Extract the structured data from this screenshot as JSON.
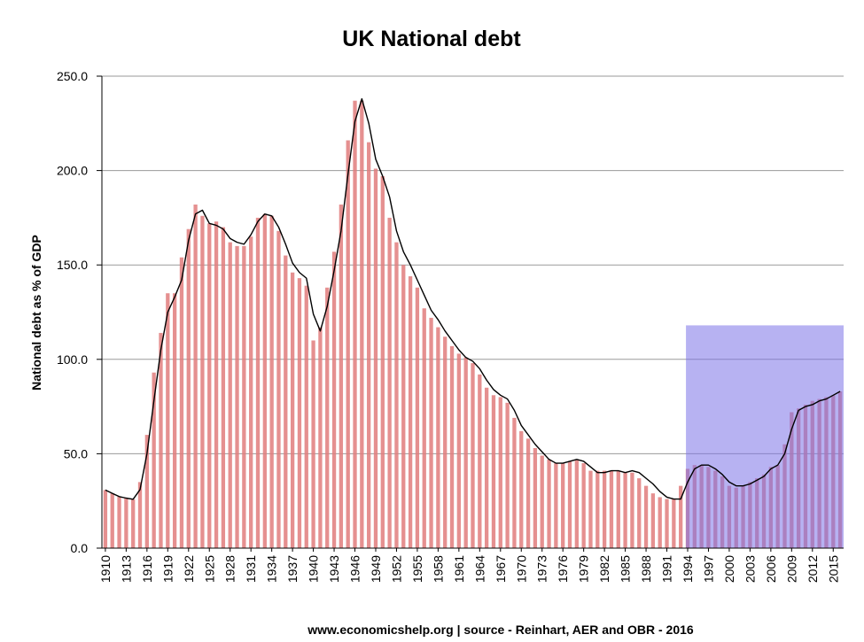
{
  "chart_data": {
    "type": "bar",
    "title": "UK National debt",
    "ylabel": "National debt as % of GDP",
    "xlabel": "",
    "source": "www.economicshelp.org | source - Reinhart, AER and OBR - 2016",
    "ylim": [
      0,
      250
    ],
    "yticks": [
      "0.0",
      "50.0",
      "100.0",
      "150.0",
      "200.0",
      "250.0"
    ],
    "grid": "horizontal",
    "year_start": 1910,
    "year_end": 2016,
    "xtick_labels": [
      "1910",
      "1913",
      "1916",
      "1919",
      "1922",
      "1925",
      "1928",
      "1931",
      "1934",
      "1937",
      "1940",
      "1943",
      "1946",
      "1949",
      "1952",
      "1955",
      "1958",
      "1961",
      "1964",
      "1967",
      "1970",
      "1973",
      "1976",
      "1979",
      "1982",
      "1985",
      "1988",
      "1991",
      "1994",
      "1997",
      "2000",
      "2003",
      "2006",
      "2009",
      "2012",
      "2015"
    ],
    "highlight": {
      "from": 1994,
      "to": 2016,
      "ymax": 118,
      "color": "#7b73e8"
    },
    "series": [
      {
        "type": "bar",
        "color": "#e07d7d",
        "values": [
          {
            "x": 1910,
            "y": 30.8
          },
          {
            "x": 1911,
            "y": 29.0
          },
          {
            "x": 1912,
            "y": 27.3
          },
          {
            "x": 1913,
            "y": 26.5
          },
          {
            "x": 1914,
            "y": 25.9
          },
          {
            "x": 1915,
            "y": 35.0
          },
          {
            "x": 1916,
            "y": 60.0
          },
          {
            "x": 1917,
            "y": 93.0
          },
          {
            "x": 1918,
            "y": 114.0
          },
          {
            "x": 1919,
            "y": 135.0
          },
          {
            "x": 1920,
            "y": 135.0
          },
          {
            "x": 1921,
            "y": 154.0
          },
          {
            "x": 1922,
            "y": 169.0
          },
          {
            "x": 1923,
            "y": 182.0
          },
          {
            "x": 1924,
            "y": 176.0
          },
          {
            "x": 1925,
            "y": 172.0
          },
          {
            "x": 1926,
            "y": 173.0
          },
          {
            "x": 1927,
            "y": 170.0
          },
          {
            "x": 1928,
            "y": 162.0
          },
          {
            "x": 1929,
            "y": 160.0
          },
          {
            "x": 1930,
            "y": 160.0
          },
          {
            "x": 1931,
            "y": 165.0
          },
          {
            "x": 1932,
            "y": 175.0
          },
          {
            "x": 1933,
            "y": 177.0
          },
          {
            "x": 1934,
            "y": 176.0
          },
          {
            "x": 1935,
            "y": 168.0
          },
          {
            "x": 1936,
            "y": 155.0
          },
          {
            "x": 1937,
            "y": 146.0
          },
          {
            "x": 1938,
            "y": 143.0
          },
          {
            "x": 1939,
            "y": 139.0
          },
          {
            "x": 1940,
            "y": 110.0
          },
          {
            "x": 1941,
            "y": 117.0
          },
          {
            "x": 1942,
            "y": 138.0
          },
          {
            "x": 1943,
            "y": 157.0
          },
          {
            "x": 1944,
            "y": 182.0
          },
          {
            "x": 1945,
            "y": 216.0
          },
          {
            "x": 1946,
            "y": 237.0
          },
          {
            "x": 1947,
            "y": 237.0
          },
          {
            "x": 1948,
            "y": 215.0
          },
          {
            "x": 1949,
            "y": 201.0
          },
          {
            "x": 1950,
            "y": 197.0
          },
          {
            "x": 1951,
            "y": 175.0
          },
          {
            "x": 1952,
            "y": 162.0
          },
          {
            "x": 1953,
            "y": 150.0
          },
          {
            "x": 1954,
            "y": 144.0
          },
          {
            "x": 1955,
            "y": 138.0
          },
          {
            "x": 1956,
            "y": 127.0
          },
          {
            "x": 1957,
            "y": 122.0
          },
          {
            "x": 1958,
            "y": 117.0
          },
          {
            "x": 1959,
            "y": 112.0
          },
          {
            "x": 1960,
            "y": 107.0
          },
          {
            "x": 1961,
            "y": 103.0
          },
          {
            "x": 1962,
            "y": 101.0
          },
          {
            "x": 1963,
            "y": 98.0
          },
          {
            "x": 1964,
            "y": 92.0
          },
          {
            "x": 1965,
            "y": 85.0
          },
          {
            "x": 1966,
            "y": 81.0
          },
          {
            "x": 1967,
            "y": 80.0
          },
          {
            "x": 1968,
            "y": 77.0
          },
          {
            "x": 1969,
            "y": 69.0
          },
          {
            "x": 1970,
            "y": 62.0
          },
          {
            "x": 1971,
            "y": 58.0
          },
          {
            "x": 1972,
            "y": 53.0
          },
          {
            "x": 1973,
            "y": 49.0
          },
          {
            "x": 1974,
            "y": 47.0
          },
          {
            "x": 1975,
            "y": 45.0
          },
          {
            "x": 1976,
            "y": 45.0
          },
          {
            "x": 1977,
            "y": 46.0
          },
          {
            "x": 1978,
            "y": 47.0
          },
          {
            "x": 1979,
            "y": 45.0
          },
          {
            "x": 1980,
            "y": 41.0
          },
          {
            "x": 1981,
            "y": 41.0
          },
          {
            "x": 1982,
            "y": 41.0
          },
          {
            "x": 1983,
            "y": 41.0
          },
          {
            "x": 1984,
            "y": 41.0
          },
          {
            "x": 1985,
            "y": 40.0
          },
          {
            "x": 1986,
            "y": 40.0
          },
          {
            "x": 1987,
            "y": 37.0
          },
          {
            "x": 1988,
            "y": 33.0
          },
          {
            "x": 1989,
            "y": 29.0
          },
          {
            "x": 1990,
            "y": 27.0
          },
          {
            "x": 1991,
            "y": 26.0
          },
          {
            "x": 1992,
            "y": 26.0
          },
          {
            "x": 1993,
            "y": 33.0
          },
          {
            "x": 1994,
            "y": 42.0
          },
          {
            "x": 1995,
            "y": 44.0
          },
          {
            "x": 1996,
            "y": 44.0
          },
          {
            "x": 1997,
            "y": 43.0
          },
          {
            "x": 1998,
            "y": 41.0
          },
          {
            "x": 1999,
            "y": 38.0
          },
          {
            "x": 2000,
            "y": 33.0
          },
          {
            "x": 2001,
            "y": 32.0
          },
          {
            "x": 2002,
            "y": 33.0
          },
          {
            "x": 2003,
            "y": 35.0
          },
          {
            "x": 2004,
            "y": 37.0
          },
          {
            "x": 2005,
            "y": 39.0
          },
          {
            "x": 2006,
            "y": 43.0
          },
          {
            "x": 2007,
            "y": 44.0
          },
          {
            "x": 2008,
            "y": 55.0
          },
          {
            "x": 2009,
            "y": 72.0
          },
          {
            "x": 2010,
            "y": 74.0
          },
          {
            "x": 2011,
            "y": 76.0
          },
          {
            "x": 2012,
            "y": 78.0
          },
          {
            "x": 2013,
            "y": 79.0
          },
          {
            "x": 2014,
            "y": 80.0
          },
          {
            "x": 2015,
            "y": 81.0
          },
          {
            "x": 2016,
            "y": 83.0
          }
        ]
      },
      {
        "type": "line",
        "color": "#000000",
        "values": [
          {
            "x": 1910,
            "y": 30.8
          },
          {
            "x": 1911,
            "y": 29.0
          },
          {
            "x": 1912,
            "y": 27.3
          },
          {
            "x": 1913,
            "y": 26.5
          },
          {
            "x": 1914,
            "y": 25.9
          },
          {
            "x": 1915,
            "y": 31.0
          },
          {
            "x": 1916,
            "y": 50.0
          },
          {
            "x": 1917,
            "y": 78.0
          },
          {
            "x": 1918,
            "y": 105.0
          },
          {
            "x": 1919,
            "y": 125.0
          },
          {
            "x": 1920,
            "y": 133.0
          },
          {
            "x": 1921,
            "y": 142.0
          },
          {
            "x": 1922,
            "y": 163.0
          },
          {
            "x": 1923,
            "y": 177.0
          },
          {
            "x": 1924,
            "y": 179.0
          },
          {
            "x": 1925,
            "y": 172.0
          },
          {
            "x": 1926,
            "y": 171.0
          },
          {
            "x": 1927,
            "y": 169.0
          },
          {
            "x": 1928,
            "y": 164.0
          },
          {
            "x": 1929,
            "y": 162.0
          },
          {
            "x": 1930,
            "y": 161.0
          },
          {
            "x": 1931,
            "y": 166.0
          },
          {
            "x": 1932,
            "y": 173.0
          },
          {
            "x": 1933,
            "y": 177.0
          },
          {
            "x": 1934,
            "y": 176.0
          },
          {
            "x": 1935,
            "y": 170.0
          },
          {
            "x": 1936,
            "y": 161.0
          },
          {
            "x": 1937,
            "y": 151.0
          },
          {
            "x": 1938,
            "y": 146.0
          },
          {
            "x": 1939,
            "y": 143.0
          },
          {
            "x": 1940,
            "y": 124.0
          },
          {
            "x": 1941,
            "y": 115.0
          },
          {
            "x": 1942,
            "y": 128.0
          },
          {
            "x": 1943,
            "y": 147.0
          },
          {
            "x": 1944,
            "y": 168.0
          },
          {
            "x": 1945,
            "y": 198.0
          },
          {
            "x": 1946,
            "y": 226.0
          },
          {
            "x": 1947,
            "y": 238.0
          },
          {
            "x": 1948,
            "y": 225.0
          },
          {
            "x": 1949,
            "y": 206.0
          },
          {
            "x": 1950,
            "y": 197.0
          },
          {
            "x": 1951,
            "y": 186.0
          },
          {
            "x": 1952,
            "y": 168.0
          },
          {
            "x": 1953,
            "y": 157.0
          },
          {
            "x": 1954,
            "y": 150.0
          },
          {
            "x": 1955,
            "y": 142.0
          },
          {
            "x": 1956,
            "y": 134.0
          },
          {
            "x": 1957,
            "y": 126.0
          },
          {
            "x": 1958,
            "y": 121.0
          },
          {
            "x": 1959,
            "y": 115.0
          },
          {
            "x": 1960,
            "y": 110.0
          },
          {
            "x": 1961,
            "y": 105.0
          },
          {
            "x": 1962,
            "y": 101.0
          },
          {
            "x": 1963,
            "y": 99.0
          },
          {
            "x": 1964,
            "y": 95.0
          },
          {
            "x": 1965,
            "y": 89.0
          },
          {
            "x": 1966,
            "y": 84.0
          },
          {
            "x": 1967,
            "y": 81.0
          },
          {
            "x": 1968,
            "y": 79.0
          },
          {
            "x": 1969,
            "y": 73.0
          },
          {
            "x": 1970,
            "y": 65.0
          },
          {
            "x": 1971,
            "y": 60.0
          },
          {
            "x": 1972,
            "y": 55.0
          },
          {
            "x": 1973,
            "y": 51.0
          },
          {
            "x": 1974,
            "y": 47.0
          },
          {
            "x": 1975,
            "y": 45.0
          },
          {
            "x": 1976,
            "y": 45.0
          },
          {
            "x": 1977,
            "y": 46.0
          },
          {
            "x": 1978,
            "y": 47.0
          },
          {
            "x": 1979,
            "y": 46.0
          },
          {
            "x": 1980,
            "y": 43.0
          },
          {
            "x": 1981,
            "y": 40.0
          },
          {
            "x": 1982,
            "y": 40.0
          },
          {
            "x": 1983,
            "y": 41.0
          },
          {
            "x": 1984,
            "y": 41.0
          },
          {
            "x": 1985,
            "y": 40.0
          },
          {
            "x": 1986,
            "y": 41.0
          },
          {
            "x": 1987,
            "y": 40.0
          },
          {
            "x": 1988,
            "y": 37.0
          },
          {
            "x": 1989,
            "y": 34.0
          },
          {
            "x": 1990,
            "y": 30.0
          },
          {
            "x": 1991,
            "y": 27.0
          },
          {
            "x": 1992,
            "y": 26.0
          },
          {
            "x": 1993,
            "y": 26.0
          },
          {
            "x": 1994,
            "y": 35.0
          },
          {
            "x": 1995,
            "y": 42.0
          },
          {
            "x": 1996,
            "y": 44.0
          },
          {
            "x": 1997,
            "y": 44.0
          },
          {
            "x": 1998,
            "y": 42.0
          },
          {
            "x": 1999,
            "y": 39.0
          },
          {
            "x": 2000,
            "y": 35.0
          },
          {
            "x": 2001,
            "y": 33.0
          },
          {
            "x": 2002,
            "y": 33.0
          },
          {
            "x": 2003,
            "y": 34.0
          },
          {
            "x": 2004,
            "y": 36.0
          },
          {
            "x": 2005,
            "y": 38.0
          },
          {
            "x": 2006,
            "y": 42.0
          },
          {
            "x": 2007,
            "y": 44.0
          },
          {
            "x": 2008,
            "y": 50.0
          },
          {
            "x": 2009,
            "y": 63.0
          },
          {
            "x": 2010,
            "y": 73.0
          },
          {
            "x": 2011,
            "y": 75.0
          },
          {
            "x": 2012,
            "y": 76.0
          },
          {
            "x": 2013,
            "y": 78.0
          },
          {
            "x": 2014,
            "y": 79.0
          },
          {
            "x": 2015,
            "y": 81.0
          },
          {
            "x": 2016,
            "y": 83.0
          }
        ]
      }
    ]
  }
}
